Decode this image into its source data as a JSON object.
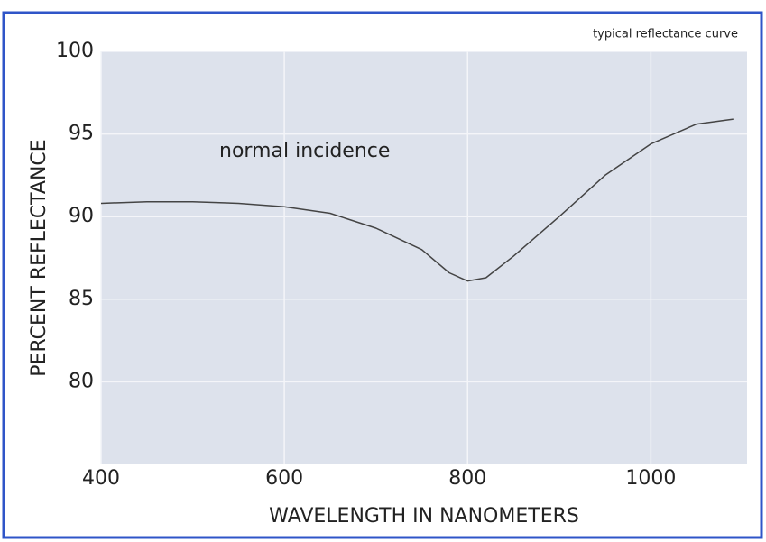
{
  "chart_data": {
    "type": "line",
    "title": "typical reflectance curve",
    "annotation": "normal incidence",
    "xlabel": "WAVELENGTH IN NANOMETERS",
    "ylabel": "PERCENT REFLECTANCE",
    "x": [
      400,
      450,
      500,
      550,
      600,
      650,
      700,
      750,
      780,
      800,
      820,
      850,
      900,
      950,
      1000,
      1050,
      1090
    ],
    "values": [
      90.8,
      90.9,
      90.9,
      90.8,
      90.6,
      90.2,
      89.3,
      88.0,
      86.6,
      86.1,
      86.3,
      87.6,
      90.0,
      92.5,
      94.4,
      95.6,
      95.9
    ],
    "color": "#444444",
    "xlim": [
      400,
      1105
    ],
    "ylim": [
      75,
      100
    ],
    "xticks": [
      400,
      600,
      800,
      1000
    ],
    "yticks": [
      80,
      85,
      90,
      95,
      100
    ],
    "grid": true
  }
}
